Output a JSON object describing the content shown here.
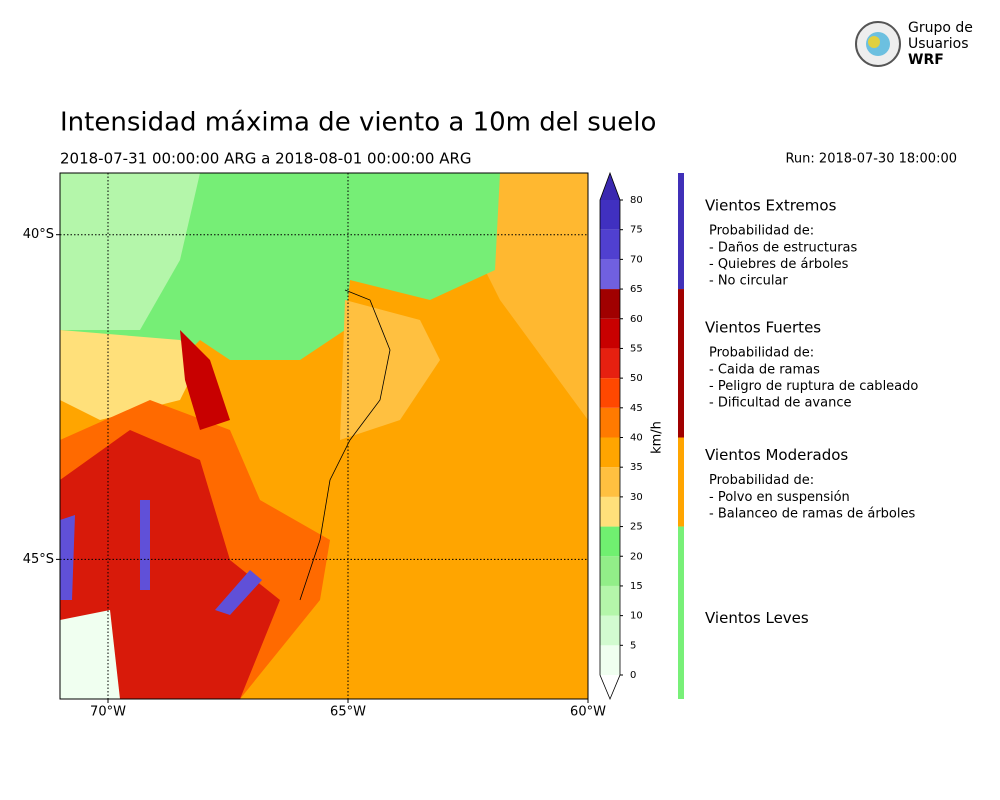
{
  "logo": {
    "lines": [
      "Grupo de",
      "Usuarios",
      "WRF"
    ]
  },
  "title": "Intensidad máxima de viento a 10m del suelo",
  "subtitle": "2018-07-31 00:00:00 ARG  a  2018-08-01 00:00:00 ARG",
  "run": "Run: 2018-07-30 18:00:00",
  "map": {
    "xlim": [
      -71,
      -60
    ],
    "ylim": [
      -47.15,
      -39.05
    ],
    "xticks": [
      {
        "value": -70,
        "label": "70°W"
      },
      {
        "value": -65,
        "label": "65°W"
      },
      {
        "value": -60,
        "label": "60°W"
      }
    ],
    "yticks": [
      {
        "value": -40,
        "label": "40°S"
      },
      {
        "value": -45,
        "label": "45°S"
      }
    ],
    "grid": true,
    "colorbar": {
      "label": "km/h",
      "ticks": [
        0,
        5,
        10,
        15,
        20,
        25,
        30,
        35,
        40,
        45,
        50,
        55,
        60,
        65,
        70,
        75,
        80
      ],
      "colors": [
        "#f0fff0",
        "#d2fbd0",
        "#b4f6aa",
        "#92ee88",
        "#70f070",
        "#ffe07a",
        "#ffc040",
        "#ffa500",
        "#ff7a00",
        "#ff4800",
        "#e62010",
        "#c80000",
        "#a00000",
        "#7060e0",
        "#5040d0",
        "#4030c0"
      ],
      "over_color": "#3a28b0",
      "under_color": "#ffffff"
    }
  },
  "legend": [
    {
      "name": "Vientos Extremos",
      "min": 65,
      "color": "#4030b8",
      "text_color": "#3a2aaa",
      "intro": "Probabilidad de:",
      "items": [
        "- Daños de estructuras",
        "- Quiebres de árboles",
        "- No circular"
      ]
    },
    {
      "name": "Vientos Fuertes",
      "min": 40,
      "color": "#a00000",
      "text_color": "#a00000",
      "intro": "Probabilidad de:",
      "items": [
        "- Caida de ramas",
        "- Peligro de ruptura de cableado",
        "- Dificultad de avance"
      ]
    },
    {
      "name": "Vientos Moderados",
      "min": 25,
      "color": "#ffa500",
      "text_color": "#a0700a",
      "intro": "Probabilidad de:",
      "items": [
        "- Polvo en suspensión",
        "- Balanceo de ramas de árboles"
      ]
    },
    {
      "name": "Vientos Leves",
      "min": 0,
      "color": "#78f078",
      "text_color": "#3a8a3a"
    }
  ]
}
